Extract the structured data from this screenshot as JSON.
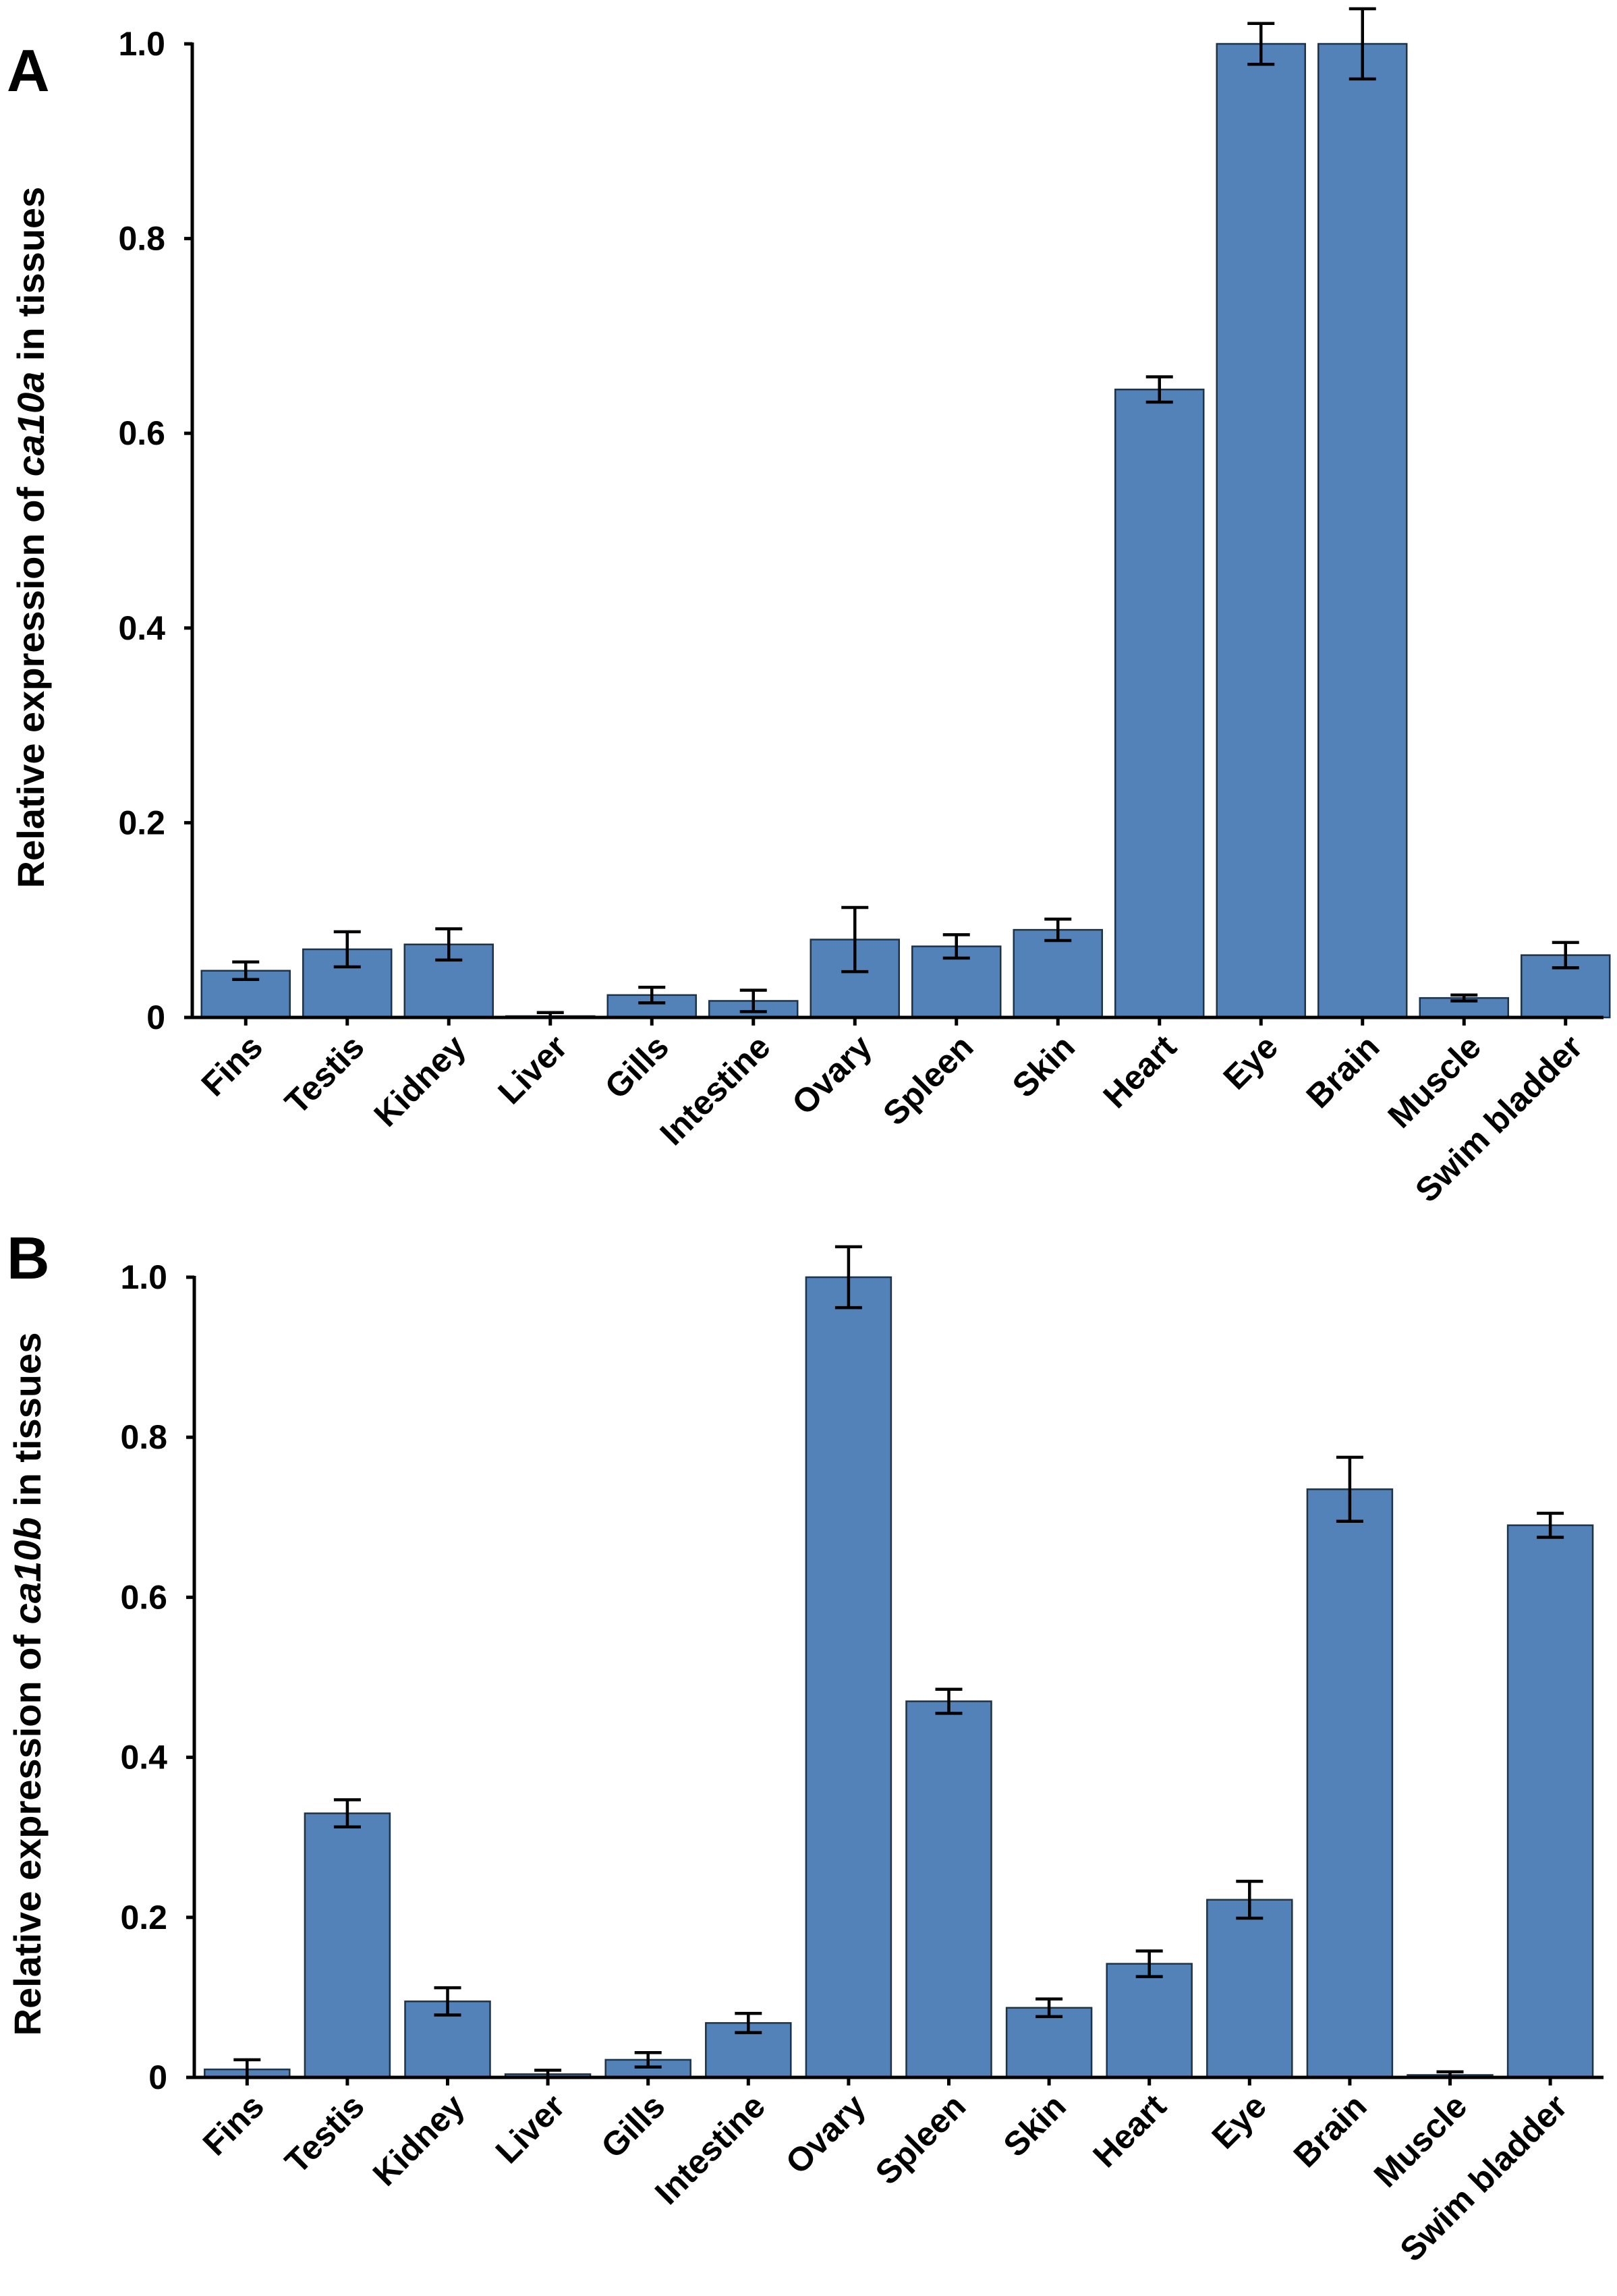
{
  "colors": {
    "bar": "#5282b8",
    "bar_edge": "#1f3347",
    "axis": "#000000"
  },
  "chart_data": [
    {
      "type": "bar",
      "panel_label": "A",
      "ylabel_parts": [
        "Relative expression of ",
        "ca10a",
        " in tissues"
      ],
      "ylim": [
        0,
        1.0
      ],
      "yticks": [
        0,
        0.2,
        0.4,
        0.6,
        0.8,
        1.0
      ],
      "ytick_labels": [
        "0",
        "0.2",
        "0.4",
        "0.6",
        "0.8",
        "1.0"
      ],
      "categories": [
        "Fins",
        "Testis",
        "Kidney",
        "Liver",
        "Gills",
        "Intestine",
        "Ovary",
        "Spleen",
        "Skin",
        "Heart",
        "Eye",
        "Brain",
        "Muscle",
        "Swim bladder"
      ],
      "values": [
        0.048,
        0.07,
        0.075,
        0.001,
        0.023,
        0.017,
        0.08,
        0.073,
        0.09,
        0.645,
        1.0,
        1.0,
        0.02,
        0.064
      ],
      "errors": [
        0.009,
        0.018,
        0.016,
        0.004,
        0.008,
        0.011,
        0.033,
        0.012,
        0.011,
        0.013,
        0.021,
        0.036,
        0.003,
        0.013
      ],
      "grid": false,
      "legend": "none"
    },
    {
      "type": "bar",
      "panel_label": "B",
      "ylabel_parts": [
        "Relative expression of ",
        "ca10b",
        " in tissues"
      ],
      "ylim": [
        0,
        1.0
      ],
      "yticks": [
        0,
        0.2,
        0.4,
        0.6,
        0.8,
        1.0
      ],
      "ytick_labels": [
        "0",
        "0.2",
        "0.4",
        "0.6",
        "0.8",
        "1.0"
      ],
      "categories": [
        "Fins",
        "Testis",
        "Kidney",
        "Liver",
        "Gills",
        "Intestine",
        "Ovary",
        "Spleen",
        "Skin",
        "Heart",
        "Eye",
        "Brain",
        "Muscle",
        "Swim bladder"
      ],
      "values": [
        0.01,
        0.33,
        0.095,
        0.004,
        0.022,
        0.068,
        1.0,
        0.47,
        0.087,
        0.142,
        0.222,
        0.735,
        0.003,
        0.69
      ],
      "errors": [
        0.012,
        0.017,
        0.017,
        0.005,
        0.009,
        0.012,
        0.038,
        0.015,
        0.011,
        0.016,
        0.023,
        0.04,
        0.004,
        0.015
      ],
      "grid": false,
      "legend": "none"
    }
  ]
}
